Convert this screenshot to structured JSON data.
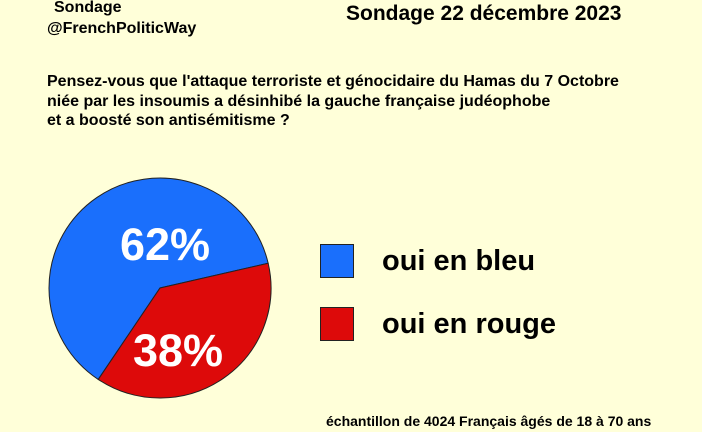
{
  "header": {
    "source_line1": "Sondage",
    "source_line2": "@FrenchPoliticWay",
    "title": "Sondage 22 décembre 2023"
  },
  "question": {
    "lines": [
      "Pensez-vous que l'attaque terroriste et génocidaire du Hamas du 7 Octobre",
      "niée par les insoumis a désinhibé la gauche française judéophobe",
      "et a boosté son antisémitisme ?"
    ]
  },
  "chart_data": {
    "type": "pie",
    "title": "",
    "slices": [
      {
        "label": "oui en bleu",
        "value": 62,
        "value_label": "62%",
        "color": "#1a6ffc"
      },
      {
        "label": "oui en rouge",
        "value": 38,
        "value_label": "38%",
        "color": "#dd0a0a"
      }
    ],
    "legend": {
      "placement": "right",
      "entries": [
        "oui en bleu",
        "oui en rouge"
      ]
    }
  },
  "footnote": "échantillon de 4024 Français âgés de 18 à 70 ans"
}
